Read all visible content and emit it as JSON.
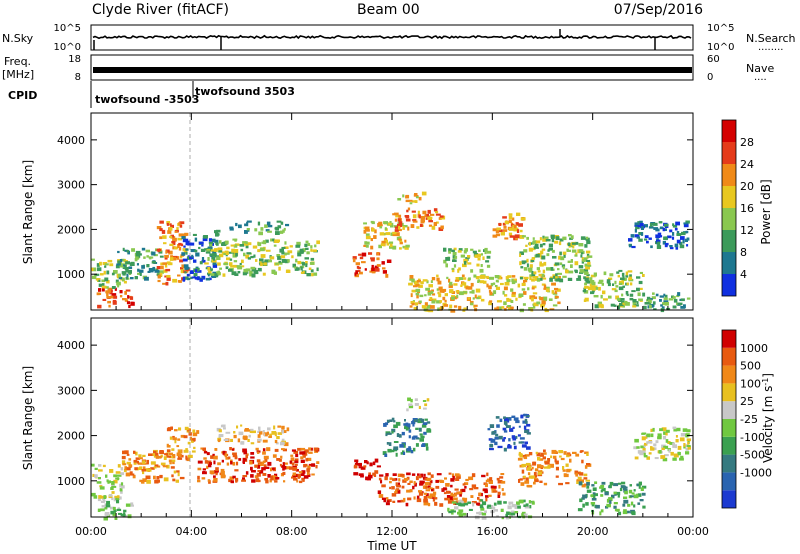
{
  "header": {
    "station": "Clyde River (fitACF)",
    "beam": "Beam 00",
    "date": "07/Sep/2016"
  },
  "strips": {
    "nsky": {
      "label": "N.Sky",
      "ticks_left": [
        "10^5",
        "10^0"
      ],
      "ticks_right": [
        "10^5",
        "10^0"
      ],
      "right_label": "N.Search",
      "right_marker": "........"
    },
    "freq": {
      "label_line1": "Freq.",
      "label_line2": "[MHz]",
      "ticks_left": [
        "18",
        "8"
      ],
      "ticks_right": [
        "60",
        "0"
      ],
      "right_label": "Nave",
      "right_marker": "...."
    },
    "cpid": {
      "label": "CPID",
      "segments": [
        {
          "text": "twofsound  -3503",
          "start_hour": 0.0
        },
        {
          "text": "twofsound  3503",
          "start_hour": 4.12
        }
      ]
    }
  },
  "chart_data": [
    {
      "type": "heatmap",
      "name": "power",
      "ylabel": "Slant Range [km]",
      "xlabel": "Time UT",
      "xlim_hours": [
        0,
        24
      ],
      "ylim": [
        200,
        4600
      ],
      "x_ticks": [
        "00:00",
        "04:00",
        "08:00",
        "12:00",
        "16:00",
        "20:00",
        "00:00"
      ],
      "y_ticks": [
        1000,
        2000,
        3000,
        4000
      ],
      "colorbar": {
        "label": "Power [dB]",
        "ticks": [
          "4",
          "8",
          "12",
          "16",
          "20",
          "24",
          "28"
        ],
        "colors": [
          "#1030e0",
          "#1e7890",
          "#3c9a5a",
          "#8ac850",
          "#e8c820",
          "#f08a18",
          "#e53b1a",
          "#d40000"
        ]
      },
      "echo_regions": [
        {
          "t0": 0.2,
          "t1": 1.6,
          "r0": 300,
          "r1": 700,
          "level": 6
        },
        {
          "t0": 0.0,
          "t1": 1.4,
          "r0": 700,
          "r1": 1350,
          "level": 3
        },
        {
          "t0": 1.0,
          "t1": 2.8,
          "r0": 900,
          "r1": 1600,
          "level": 2
        },
        {
          "t0": 2.6,
          "t1": 3.8,
          "r0": 800,
          "r1": 2200,
          "level": 5
        },
        {
          "t0": 3.6,
          "t1": 5.0,
          "r0": 900,
          "r1": 2000,
          "level": 1
        },
        {
          "t0": 4.5,
          "t1": 9.0,
          "r0": 1000,
          "r1": 1800,
          "level": 3
        },
        {
          "t0": 5.5,
          "t1": 7.8,
          "r0": 1950,
          "r1": 2200,
          "level": 2
        },
        {
          "t0": 10.4,
          "t1": 11.8,
          "r0": 1000,
          "r1": 1500,
          "level": 6
        },
        {
          "t0": 10.8,
          "t1": 12.6,
          "r0": 1600,
          "r1": 2200,
          "level": 4
        },
        {
          "t0": 12.0,
          "t1": 14.0,
          "r0": 2000,
          "r1": 2500,
          "level": 5
        },
        {
          "t0": 12.2,
          "t1": 13.2,
          "r0": 2600,
          "r1": 2850,
          "level": 4
        },
        {
          "t0": 12.6,
          "t1": 18.6,
          "r0": 200,
          "r1": 1000,
          "level": 4
        },
        {
          "t0": 14.0,
          "t1": 15.8,
          "r0": 1100,
          "r1": 1600,
          "level": 3
        },
        {
          "t0": 16.0,
          "t1": 17.2,
          "r0": 1800,
          "r1": 2400,
          "level": 5
        },
        {
          "t0": 17.0,
          "t1": 19.8,
          "r0": 900,
          "r1": 1900,
          "level": 3
        },
        {
          "t0": 19.6,
          "t1": 22.0,
          "r0": 300,
          "r1": 1100,
          "level": 3
        },
        {
          "t0": 21.4,
          "t1": 23.8,
          "r0": 1600,
          "r1": 2200,
          "level": 1
        },
        {
          "t0": 22.0,
          "t1": 23.8,
          "r0": 200,
          "r1": 600,
          "level": 2
        }
      ]
    },
    {
      "type": "heatmap",
      "name": "velocity",
      "ylabel": "Slant Range [km]",
      "xlabel": "Time UT",
      "xlim_hours": [
        0,
        24
      ],
      "ylim": [
        200,
        4600
      ],
      "x_ticks": [
        "00:00",
        "04:00",
        "08:00",
        "12:00",
        "16:00",
        "20:00",
        "00:00"
      ],
      "y_ticks": [
        1000,
        2000,
        3000,
        4000
      ],
      "colorbar": {
        "label": "Velocity [m s^-1]",
        "ticks": [
          "1000",
          "500",
          "100",
          "25",
          "-25",
          "-100",
          "-500",
          "-1000"
        ],
        "colors": [
          "#1c3ad0",
          "#2a64b0",
          "#357a80",
          "#3aa050",
          "#70c840",
          "#c8c8c8",
          "#e8c020",
          "#f08818",
          "#e85a10",
          "#d00000"
        ]
      },
      "echo_regions": [
        {
          "t0": 0.0,
          "t1": 1.2,
          "r0": 600,
          "r1": 1400,
          "level": 5
        },
        {
          "t0": 0.2,
          "t1": 1.6,
          "r0": 200,
          "r1": 600,
          "level": 4
        },
        {
          "t0": 1.2,
          "t1": 3.6,
          "r0": 1000,
          "r1": 1700,
          "level": 7
        },
        {
          "t0": 3.0,
          "t1": 4.2,
          "r0": 1500,
          "r1": 2200,
          "level": 7
        },
        {
          "t0": 4.2,
          "t1": 9.0,
          "r0": 1000,
          "r1": 1750,
          "level": 8
        },
        {
          "t0": 5.0,
          "t1": 7.8,
          "r0": 1850,
          "r1": 2250,
          "level": 6
        },
        {
          "t0": 10.4,
          "t1": 11.4,
          "r0": 1000,
          "r1": 1500,
          "level": 9
        },
        {
          "t0": 11.6,
          "t1": 13.4,
          "r0": 1600,
          "r1": 2400,
          "level": 2
        },
        {
          "t0": 12.4,
          "t1": 13.4,
          "r0": 2600,
          "r1": 2850,
          "level": 5
        },
        {
          "t0": 11.4,
          "t1": 16.4,
          "r0": 500,
          "r1": 1200,
          "level": 8
        },
        {
          "t0": 14.2,
          "t1": 17.6,
          "r0": 200,
          "r1": 600,
          "level": 4
        },
        {
          "t0": 15.8,
          "t1": 17.4,
          "r0": 1700,
          "r1": 2500,
          "level": 1
        },
        {
          "t0": 17.0,
          "t1": 19.8,
          "r0": 900,
          "r1": 1700,
          "level": 7
        },
        {
          "t0": 19.4,
          "t1": 22.0,
          "r0": 300,
          "r1": 1000,
          "level": 3
        },
        {
          "t0": 21.6,
          "t1": 23.8,
          "r0": 1500,
          "r1": 2200,
          "level": 5
        }
      ]
    }
  ]
}
